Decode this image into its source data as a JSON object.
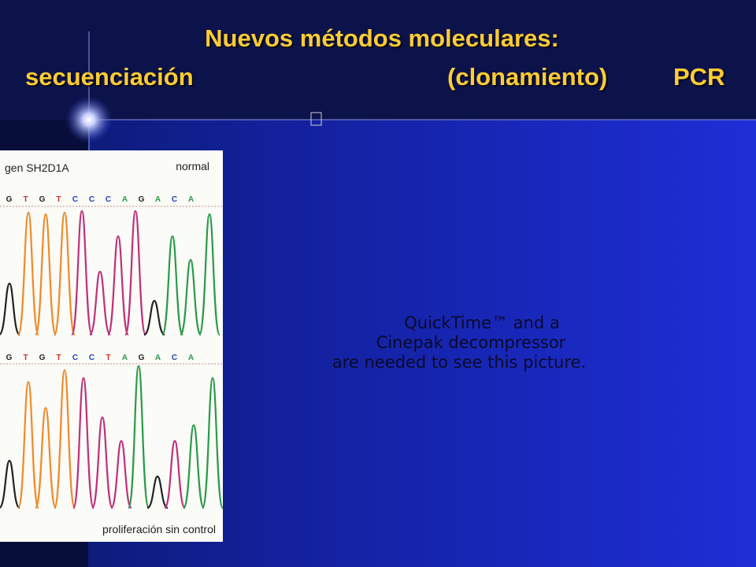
{
  "title": {
    "line1": "Nuevos métodos moleculares:",
    "line2": [
      "secuenciación",
      "(clonamiento)",
      "PCR"
    ]
  },
  "figure": {
    "gene": "gen SH2D1A",
    "condition_top": "normal",
    "sequence_top": [
      "G",
      "T",
      "G",
      "T",
      "C",
      "C",
      "C",
      "A",
      "G",
      "A",
      "C",
      "A"
    ],
    "sequence_bottom": [
      "G",
      "T",
      "G",
      "T",
      "C",
      "C",
      "T",
      "A",
      "G",
      "A",
      "C",
      "A"
    ],
    "condition_bottom": "proliferación sin control"
  },
  "placeholder": [
    "QuickTime™ and a",
    "Cinepak decompressor",
    "are needed to see this picture."
  ]
}
